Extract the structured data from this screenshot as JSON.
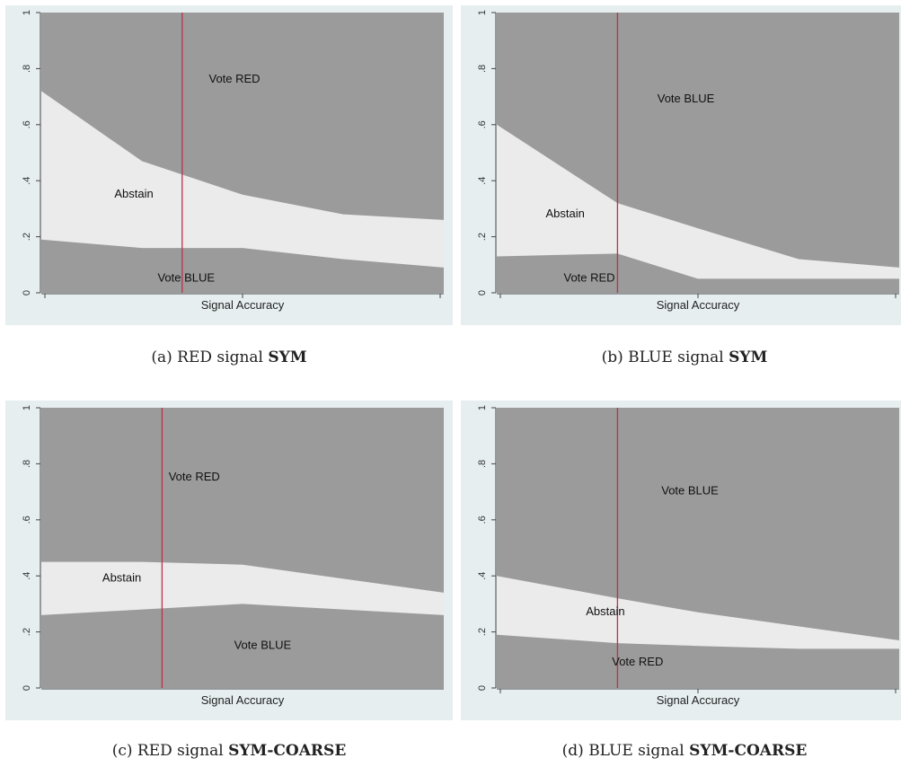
{
  "captions": [
    {
      "prefix": "(a) RED signal ",
      "bold": "SYM"
    },
    {
      "prefix": "(b) BLUE signal ",
      "bold": "SYM"
    },
    {
      "prefix": "(c) RED signal ",
      "bold": "SYM-COARSE"
    },
    {
      "prefix": "(d) BLUE signal ",
      "bold": "SYM-COARSE"
    }
  ],
  "colors": {
    "background": "#9b9b9b",
    "band": "#ebebeb",
    "threshold_line": "#c0304a",
    "panel": "#e6eef0"
  },
  "chart_data": [
    {
      "type": "area",
      "xlabel": "Signal Accuracy",
      "ylabel": "",
      "ylim": [
        0,
        1
      ],
      "yticks": [
        "0",
        ".2",
        ".4",
        ".6",
        ".8",
        "1"
      ],
      "xlim": [
        0,
        1
      ],
      "x_ticks_count": 3,
      "x": [
        0,
        0.25,
        0.5,
        0.75,
        1
      ],
      "upper": [
        0.72,
        0.47,
        0.35,
        0.28,
        0.26
      ],
      "lower": [
        0.19,
        0.16,
        0.16,
        0.12,
        0.09
      ],
      "vline_x": 0.35,
      "regions": [
        {
          "label": "Vote RED",
          "x": 0.48,
          "y": 0.75
        },
        {
          "label": "Abstain",
          "x": 0.23,
          "y": 0.34
        },
        {
          "label": "Vote BLUE",
          "x": 0.36,
          "y": 0.04
        }
      ]
    },
    {
      "type": "area",
      "xlabel": "Signal Accuracy",
      "ylabel": "",
      "ylim": [
        0,
        1
      ],
      "yticks": [
        "0",
        ".2",
        ".4",
        ".6",
        ".8",
        "1"
      ],
      "xlim": [
        0,
        1
      ],
      "x_ticks_count": 3,
      "x": [
        0,
        0.3,
        0.5,
        0.75,
        1
      ],
      "upper": [
        0.6,
        0.32,
        0.23,
        0.12,
        0.09
      ],
      "lower": [
        0.13,
        0.14,
        0.05,
        0.05,
        0.05
      ],
      "vline_x": 0.3,
      "regions": [
        {
          "label": "Vote BLUE",
          "x": 0.47,
          "y": 0.68
        },
        {
          "label": "Abstain",
          "x": 0.17,
          "y": 0.27
        },
        {
          "label": "Vote RED",
          "x": 0.23,
          "y": 0.04
        }
      ]
    },
    {
      "type": "area",
      "xlabel": "Signal Accuracy",
      "ylabel": "",
      "ylim": [
        0,
        1
      ],
      "yticks": [
        "0",
        ".2",
        ".4",
        ".6",
        ".8",
        "1"
      ],
      "xlim": [
        0,
        1
      ],
      "x_ticks_count": 0,
      "x": [
        0,
        0.25,
        0.5,
        0.75,
        1
      ],
      "upper": [
        0.45,
        0.45,
        0.44,
        0.39,
        0.34
      ],
      "lower": [
        0.26,
        0.28,
        0.3,
        0.28,
        0.26
      ],
      "vline_x": 0.3,
      "regions": [
        {
          "label": "Vote RED",
          "x": 0.38,
          "y": 0.74
        },
        {
          "label": "Abstain",
          "x": 0.2,
          "y": 0.38
        },
        {
          "label": "Vote BLUE",
          "x": 0.55,
          "y": 0.14
        }
      ]
    },
    {
      "type": "area",
      "xlabel": "Signal Accuracy",
      "ylabel": "",
      "ylim": [
        0,
        1
      ],
      "yticks": [
        "0",
        ".2",
        ".4",
        ".6",
        ".8",
        "1"
      ],
      "xlim": [
        0,
        1
      ],
      "x_ticks_count": 3,
      "x": [
        0,
        0.3,
        0.5,
        0.75,
        1
      ],
      "upper": [
        0.4,
        0.32,
        0.27,
        0.22,
        0.17
      ],
      "lower": [
        0.19,
        0.16,
        0.15,
        0.14,
        0.14
      ],
      "vline_x": 0.3,
      "regions": [
        {
          "label": "Vote BLUE",
          "x": 0.48,
          "y": 0.69
        },
        {
          "label": "Abstain",
          "x": 0.27,
          "y": 0.26
        },
        {
          "label": "Vote RED",
          "x": 0.35,
          "y": 0.08
        }
      ]
    }
  ]
}
